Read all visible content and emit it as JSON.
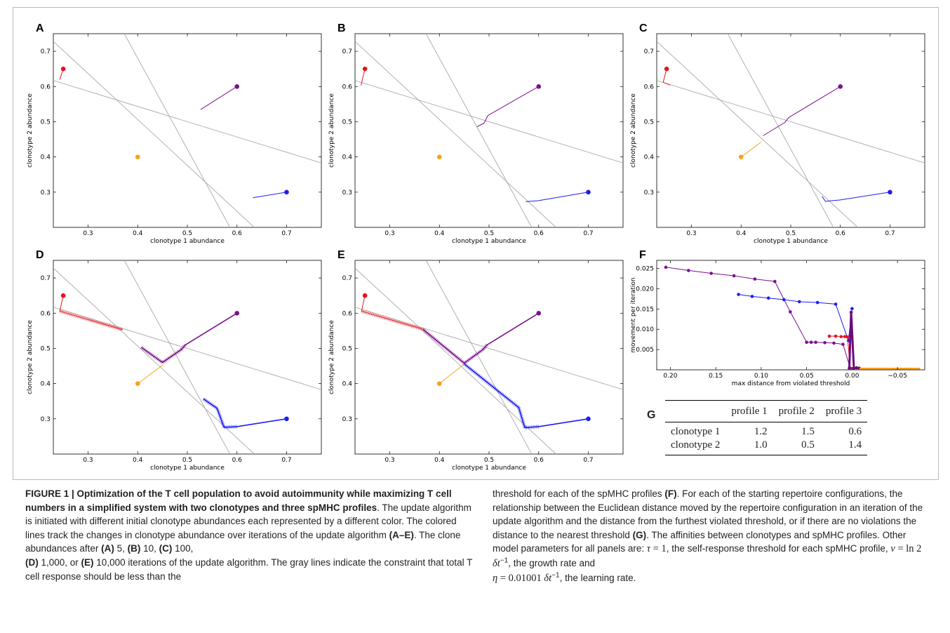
{
  "panels": {
    "A": {
      "letter": "A",
      "xlabel": "clonotype 1 abundance",
      "ylabel": "clonotype 2 abundance"
    },
    "B": {
      "letter": "B",
      "xlabel": "clonotype 1 abundance",
      "ylabel": "clonotype 2 abundance"
    },
    "C": {
      "letter": "C",
      "xlabel": "clonotype 1 abundance",
      "ylabel": "clonotype 2 abundance"
    },
    "D": {
      "letter": "D",
      "xlabel": "clonotype 1 abundance",
      "ylabel": "clonotype 2 abundance"
    },
    "E": {
      "letter": "E",
      "xlabel": "clonotype 1 abundance",
      "ylabel": "clonotype 2 abundance"
    },
    "F": {
      "letter": "F",
      "xlabel": "max distance from violated threshold",
      "ylabel": "movement per iteration"
    },
    "G": {
      "letter": "G"
    }
  },
  "colors": {
    "red": "#e8141b",
    "purple": "#7c0f8f",
    "orange": "#f5a21a",
    "blue": "#1d1df0",
    "gray": "#a9a9a9"
  },
  "chart_data": [
    {
      "panel": "A",
      "type": "line",
      "xlabel": "clonotype 1 abundance",
      "ylabel": "clonotype 2 abundance",
      "xlim": [
        0.23,
        0.77
      ],
      "ylim": [
        0.2,
        0.75
      ],
      "xticks": [
        "0.3",
        "0.4",
        "0.5",
        "0.6",
        "0.7"
      ],
      "yticks": [
        "0.3",
        "0.4",
        "0.5",
        "0.6",
        "0.7"
      ],
      "thresholds": [
        {
          "points": [
            [
              0.23,
              0.617
            ],
            [
              0.77,
              0.383
            ]
          ]
        },
        {
          "points": [
            [
              0.23,
              0.728
            ],
            [
              0.635,
              0.2
            ]
          ]
        },
        {
          "points": [
            [
              0.373,
              0.75
            ],
            [
              0.586,
              0.2
            ]
          ]
        }
      ],
      "starts": [
        {
          "color": "red",
          "x": 0.25,
          "y": 0.65
        },
        {
          "color": "purple",
          "x": 0.6,
          "y": 0.6
        },
        {
          "color": "orange",
          "x": 0.4,
          "y": 0.4
        },
        {
          "color": "blue",
          "x": 0.7,
          "y": 0.3
        }
      ],
      "series": [
        {
          "color": "red",
          "points": [
            [
              0.25,
              0.65
            ],
            [
              0.243,
              0.62
            ]
          ]
        },
        {
          "color": "purple",
          "points": [
            [
              0.6,
              0.6
            ],
            [
              0.527,
              0.535
            ]
          ]
        },
        {
          "color": "orange",
          "points": [
            [
              0.4,
              0.4
            ]
          ]
        },
        {
          "color": "blue",
          "points": [
            [
              0.7,
              0.3
            ],
            [
              0.632,
              0.284
            ]
          ]
        }
      ]
    },
    {
      "panel": "B",
      "type": "line",
      "xlabel": "clonotype 1 abundance",
      "ylabel": "clonotype 2 abundance",
      "xlim": [
        0.23,
        0.77
      ],
      "ylim": [
        0.2,
        0.75
      ],
      "xticks": [
        "0.3",
        "0.4",
        "0.5",
        "0.6",
        "0.7"
      ],
      "yticks": [
        "0.3",
        "0.4",
        "0.5",
        "0.6",
        "0.7"
      ],
      "thresholds": [
        {
          "points": [
            [
              0.23,
              0.617
            ],
            [
              0.77,
              0.383
            ]
          ]
        },
        {
          "points": [
            [
              0.23,
              0.728
            ],
            [
              0.635,
              0.2
            ]
          ]
        },
        {
          "points": [
            [
              0.373,
              0.75
            ],
            [
              0.586,
              0.2
            ]
          ]
        }
      ],
      "starts": [
        {
          "color": "red",
          "x": 0.25,
          "y": 0.65
        },
        {
          "color": "purple",
          "x": 0.6,
          "y": 0.6
        },
        {
          "color": "orange",
          "x": 0.4,
          "y": 0.4
        },
        {
          "color": "blue",
          "x": 0.7,
          "y": 0.3
        }
      ],
      "series": [
        {
          "color": "red",
          "points": [
            [
              0.25,
              0.65
            ],
            [
              0.242,
              0.603
            ]
          ]
        },
        {
          "color": "purple",
          "points": [
            [
              0.6,
              0.6
            ],
            [
              0.498,
              0.518
            ],
            [
              0.49,
              0.496
            ],
            [
              0.476,
              0.486
            ]
          ]
        },
        {
          "color": "orange",
          "points": [
            [
              0.4,
              0.4
            ]
          ]
        },
        {
          "color": "blue",
          "points": [
            [
              0.7,
              0.3
            ],
            [
              0.6,
              0.276
            ],
            [
              0.574,
              0.273
            ]
          ]
        }
      ]
    },
    {
      "panel": "C",
      "type": "line",
      "xlabel": "clonotype 1 abundance",
      "ylabel": "clonotype 2 abundance",
      "xlim": [
        0.23,
        0.77
      ],
      "ylim": [
        0.2,
        0.75
      ],
      "xticks": [
        "0.3",
        "0.4",
        "0.5",
        "0.6",
        "0.7"
      ],
      "yticks": [
        "0.3",
        "0.4",
        "0.5",
        "0.6",
        "0.7"
      ],
      "thresholds": [
        {
          "points": [
            [
              0.23,
              0.617
            ],
            [
              0.77,
              0.383
            ]
          ]
        },
        {
          "points": [
            [
              0.23,
              0.728
            ],
            [
              0.635,
              0.2
            ]
          ]
        },
        {
          "points": [
            [
              0.373,
              0.75
            ],
            [
              0.586,
              0.2
            ]
          ]
        }
      ],
      "starts": [
        {
          "color": "red",
          "x": 0.25,
          "y": 0.65
        },
        {
          "color": "purple",
          "x": 0.6,
          "y": 0.6
        },
        {
          "color": "orange",
          "x": 0.4,
          "y": 0.4
        },
        {
          "color": "blue",
          "x": 0.7,
          "y": 0.3
        }
      ],
      "series": [
        {
          "color": "red",
          "points": [
            [
              0.25,
              0.65
            ],
            [
              0.243,
              0.612
            ],
            [
              0.257,
              0.604
            ]
          ]
        },
        {
          "color": "purple",
          "points": [
            [
              0.6,
              0.6
            ],
            [
              0.496,
              0.512
            ],
            [
              0.488,
              0.498
            ],
            [
              0.444,
              0.46
            ]
          ]
        },
        {
          "color": "orange",
          "points": [
            [
              0.4,
              0.4
            ],
            [
              0.44,
              0.442
            ]
          ]
        },
        {
          "color": "blue",
          "points": [
            [
              0.7,
              0.3
            ],
            [
              0.6,
              0.278
            ],
            [
              0.57,
              0.274
            ],
            [
              0.563,
              0.288
            ]
          ]
        }
      ]
    },
    {
      "panel": "D",
      "type": "line",
      "xlabel": "clonotype 1 abundance",
      "ylabel": "clonotype 2 abundance",
      "xlim": [
        0.23,
        0.77
      ],
      "ylim": [
        0.2,
        0.75
      ],
      "xticks": [
        "0.3",
        "0.4",
        "0.5",
        "0.6",
        "0.7"
      ],
      "yticks": [
        "0.3",
        "0.4",
        "0.5",
        "0.6",
        "0.7"
      ],
      "thresholds": [
        {
          "points": [
            [
              0.23,
              0.617
            ],
            [
              0.77,
              0.383
            ]
          ]
        },
        {
          "points": [
            [
              0.23,
              0.728
            ],
            [
              0.635,
              0.2
            ]
          ]
        },
        {
          "points": [
            [
              0.373,
              0.75
            ],
            [
              0.586,
              0.2
            ]
          ]
        }
      ],
      "starts": [
        {
          "color": "red",
          "x": 0.25,
          "y": 0.65
        },
        {
          "color": "purple",
          "x": 0.6,
          "y": 0.6
        },
        {
          "color": "orange",
          "x": 0.4,
          "y": 0.4
        },
        {
          "color": "blue",
          "x": 0.7,
          "y": 0.3
        }
      ],
      "series": [
        {
          "color": "red",
          "points": [
            [
              0.25,
              0.65
            ],
            [
              0.243,
              0.606
            ],
            [
              0.37,
              0.553
            ]
          ]
        },
        {
          "color": "purple",
          "points": [
            [
              0.6,
              0.6
            ],
            [
              0.496,
              0.51
            ],
            [
              0.488,
              0.497
            ],
            [
              0.45,
              0.46
            ],
            [
              0.407,
              0.503
            ]
          ]
        },
        {
          "color": "orange",
          "points": [
            [
              0.4,
              0.4
            ],
            [
              0.452,
              0.454
            ]
          ]
        },
        {
          "color": "blue",
          "points": [
            [
              0.7,
              0.3
            ],
            [
              0.6,
              0.278
            ],
            [
              0.574,
              0.276
            ],
            [
              0.56,
              0.33
            ],
            [
              0.532,
              0.357
            ]
          ]
        }
      ]
    },
    {
      "panel": "E",
      "type": "line",
      "xlabel": "clonotype 1 abundance",
      "ylabel": "clonotype 2 abundance",
      "xlim": [
        0.23,
        0.77
      ],
      "ylim": [
        0.2,
        0.75
      ],
      "xticks": [
        "0.3",
        "0.4",
        "0.5",
        "0.6",
        "0.7"
      ],
      "yticks": [
        "0.3",
        "0.4",
        "0.5",
        "0.6",
        "0.7"
      ],
      "thresholds": [
        {
          "points": [
            [
              0.23,
              0.617
            ],
            [
              0.77,
              0.383
            ]
          ]
        },
        {
          "points": [
            [
              0.23,
              0.728
            ],
            [
              0.635,
              0.2
            ]
          ]
        },
        {
          "points": [
            [
              0.373,
              0.75
            ],
            [
              0.586,
              0.2
            ]
          ]
        }
      ],
      "starts": [
        {
          "color": "red",
          "x": 0.25,
          "y": 0.65
        },
        {
          "color": "purple",
          "x": 0.6,
          "y": 0.6
        },
        {
          "color": "orange",
          "x": 0.4,
          "y": 0.4
        },
        {
          "color": "blue",
          "x": 0.7,
          "y": 0.3
        }
      ],
      "series": [
        {
          "color": "red",
          "points": [
            [
              0.25,
              0.65
            ],
            [
              0.243,
              0.606
            ],
            [
              0.37,
              0.553
            ]
          ]
        },
        {
          "color": "purple",
          "points": [
            [
              0.6,
              0.6
            ],
            [
              0.496,
              0.51
            ],
            [
              0.488,
              0.497
            ],
            [
              0.45,
              0.458
            ],
            [
              0.368,
              0.553
            ]
          ]
        },
        {
          "color": "orange",
          "points": [
            [
              0.4,
              0.4
            ],
            [
              0.45,
              0.455
            ]
          ]
        },
        {
          "color": "blue",
          "points": [
            [
              0.7,
              0.3
            ],
            [
              0.6,
              0.278
            ],
            [
              0.572,
              0.275
            ],
            [
              0.56,
              0.332
            ],
            [
              0.45,
              0.456
            ]
          ]
        }
      ]
    },
    {
      "panel": "F",
      "type": "line",
      "xlabel": "max distance from violated threshold",
      "ylabel": "movement per iteration",
      "xlim": [
        0.215,
        -0.08
      ],
      "ylim": [
        0.0,
        0.027
      ],
      "xticks": [
        "0.20",
        "0.15",
        "0.10",
        "0.05",
        "0.00",
        "−0.05"
      ],
      "yticks": [
        "0.005",
        "0.010",
        "0.015",
        "0.020",
        "0.025"
      ],
      "series": [
        {
          "color": "purple",
          "x": [
            0.205,
            0.18,
            0.155,
            0.13,
            0.107,
            0.085,
            0.068,
            0.05,
            0.045,
            0.04,
            0.03,
            0.02,
            0.01,
            0.002
          ],
          "y": [
            0.0253,
            0.0245,
            0.0238,
            0.0232,
            0.0224,
            0.0218,
            0.0143,
            0.0068,
            0.0068,
            0.0068,
            0.0067,
            0.0066,
            0.0063,
            0.0004
          ]
        },
        {
          "color": "blue",
          "x": [
            0.125,
            0.11,
            0.092,
            0.075,
            0.058,
            0.038,
            0.018,
            0.004,
            0.0
          ],
          "y": [
            0.0186,
            0.0181,
            0.0177,
            0.0173,
            0.0168,
            0.0166,
            0.0162,
            0.0072,
            0.0151
          ]
        },
        {
          "color": "red",
          "x": [
            0.025,
            0.018,
            0.012,
            0.008,
            0.005,
            0.002
          ],
          "y": [
            0.0083,
            0.0083,
            0.0082,
            0.0082,
            0.0081,
            0.0004
          ]
        },
        {
          "color": "purple_dark",
          "x": [
            0.003,
            0.001,
            -0.002,
            -0.005,
            -0.008
          ],
          "y": [
            0.0004,
            0.0142,
            0.0004,
            0.0005,
            0.0004
          ]
        },
        {
          "color": "orange",
          "x": [
            -0.008,
            -0.075
          ],
          "y": [
            0.0003,
            0.0003
          ]
        }
      ]
    }
  ],
  "table_g": {
    "letter": "G",
    "headers": [
      "",
      "profile 1",
      "profile 2",
      "profile 3"
    ],
    "rows": [
      {
        "label": "clonotype 1",
        "values": [
          "1.2",
          "1.5",
          "0.6"
        ]
      },
      {
        "label": "clonotype 2",
        "values": [
          "1.0",
          "0.5",
          "1.4"
        ]
      }
    ]
  },
  "caption": {
    "title": "FIGURE 1 | Optimization of the T cell population to avoid autoimmunity while maximizing T cell numbers in a simplified system with two clonotypes and three spMHC profiles",
    "left_text_1": ". The update algorithm is initiated with different initial clonotype abundances each represented by a different color. The colored lines track the changes in clonotype abundance over iterations of the update algorithm ",
    "ref_ae": "(A–E)",
    "left_text_2": ". The clone abundances after ",
    "ref_a": "(A)",
    "n_a": " 5, ",
    "ref_b": "(B)",
    "n_b": " 10, ",
    "ref_c": "(C)",
    "n_c": " 100,",
    "ref_d": "(D)",
    "n_d": " 1,000, or ",
    "ref_e": "(E)",
    "left_text_3": " 10,000 iterations of the update algorithm. The gray lines indicate the constraint that total T cell response should be less than the",
    "right_text_1": "threshold for each of the spMHC profiles ",
    "ref_f": "(F)",
    "right_text_2": ". For each of the starting repertoire configurations, the relationship between the Euclidean distance moved by the repertoire configuration in an iteration of the update algorithm and the distance from the furthest violated threshold, or if there are no violations the distance to the nearest threshold ",
    "ref_g": "(G)",
    "right_text_3": ". The affinities between clonotypes and spMHC profiles. Other model parameters for all panels are: ",
    "tau": "τ",
    "tau_val": " = 1",
    "right_text_4": ", the self-response threshold for each spMHC profile, ",
    "nu": "ν",
    "nu_val": " = ln 2 ",
    "dt1": "δt",
    "exp1": "−1",
    "right_text_5": ", the growth rate and ",
    "eta": "η",
    "eta_val": " = 0.01001 ",
    "dt2": "δt",
    "exp2": "−1",
    "right_text_6": ", the learning rate."
  }
}
